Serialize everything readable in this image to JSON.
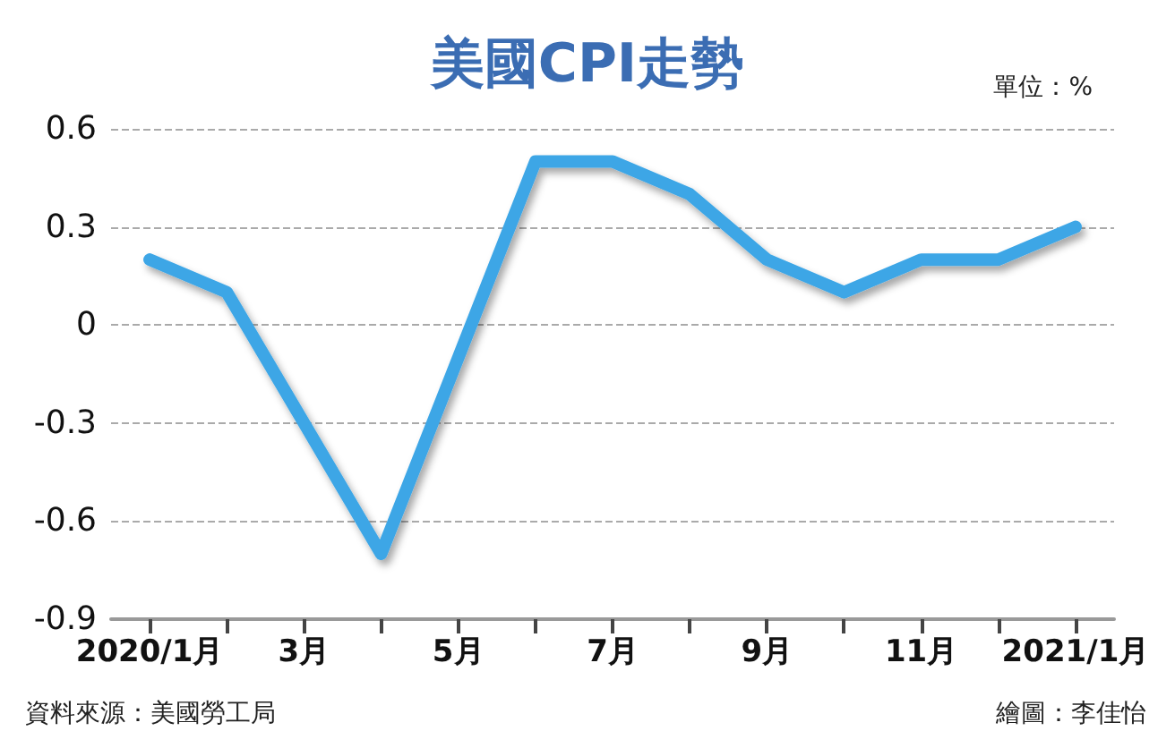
{
  "chart_data": {
    "type": "line",
    "title": "美國CPI走勢",
    "categories": [
      "2020/1月",
      null,
      "3月",
      null,
      "5月",
      null,
      "7月",
      null,
      "9月",
      null,
      "11月",
      null,
      "2021/1月"
    ],
    "series": [
      {
        "color": "#3ea6e6",
        "values": [
          0.2,
          0.1,
          -0.3,
          -0.7,
          -0.1,
          0.5,
          0.5,
          0.4,
          0.2,
          0.1,
          0.2,
          0.2,
          0.3
        ]
      }
    ],
    "ylim": [
      -0.9,
      0.6
    ],
    "yticks": [
      -0.9,
      -0.6,
      -0.3,
      0,
      0.3,
      0.6
    ],
    "grid": "y",
    "line_style": "solid",
    "annotations": [
      "單位：%",
      "資料來源：美國勞工局",
      "繪圖：李佳怡"
    ]
  }
}
